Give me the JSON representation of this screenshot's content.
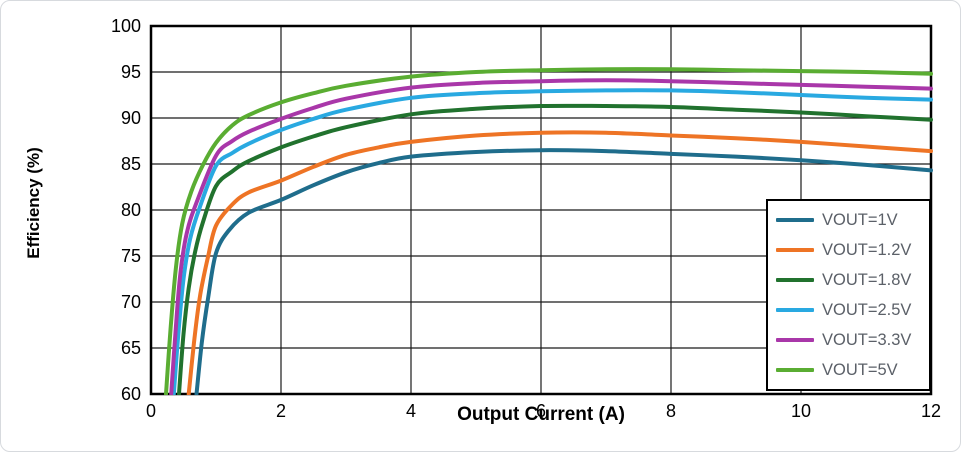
{
  "chart_data": {
    "type": "line",
    "title": "",
    "xlabel": "Output Current (A)",
    "ylabel": "Efficiency (%)",
    "xlim": [
      0,
      12
    ],
    "ylim": [
      60,
      100
    ],
    "xticks": [
      0,
      2,
      4,
      6,
      8,
      10,
      12
    ],
    "yticks": [
      100,
      95,
      90,
      85,
      80,
      75,
      70,
      65,
      60
    ],
    "grid": true,
    "legend_position": "lower right",
    "series": [
      {
        "name": "VOUT=1V",
        "color": "#1f6d8c",
        "points": [
          [
            0.7,
            60
          ],
          [
            0.78,
            65.5
          ],
          [
            0.88,
            70.5
          ],
          [
            1,
            75.3
          ],
          [
            1.2,
            77.8
          ],
          [
            1.5,
            79.7
          ],
          [
            2,
            81.1
          ],
          [
            2.5,
            82.7
          ],
          [
            3,
            84.1
          ],
          [
            3.5,
            85.1
          ],
          [
            4,
            85.8
          ],
          [
            5,
            86.3
          ],
          [
            6,
            86.5
          ],
          [
            7,
            86.4
          ],
          [
            8,
            86.1
          ],
          [
            9,
            85.8
          ],
          [
            10,
            85.4
          ],
          [
            11,
            84.9
          ],
          [
            12,
            84.3
          ]
        ]
      },
      {
        "name": "VOUT=1.2V",
        "color": "#ee7425",
        "points": [
          [
            0.58,
            60
          ],
          [
            0.66,
            65.5
          ],
          [
            0.75,
            70.5
          ],
          [
            0.88,
            75
          ],
          [
            1,
            78.3
          ],
          [
            1.25,
            80.6
          ],
          [
            1.5,
            81.9
          ],
          [
            2,
            83.2
          ],
          [
            2.5,
            84.7
          ],
          [
            3,
            86
          ],
          [
            3.5,
            86.8
          ],
          [
            4,
            87.4
          ],
          [
            5,
            88.1
          ],
          [
            6,
            88.4
          ],
          [
            7,
            88.4
          ],
          [
            8,
            88.1
          ],
          [
            9,
            87.8
          ],
          [
            10,
            87.4
          ],
          [
            11,
            86.9
          ],
          [
            12,
            86.4
          ]
        ]
      },
      {
        "name": "VOUT=1.8V",
        "color": "#21722e",
        "points": [
          [
            0.43,
            60
          ],
          [
            0.5,
            66.5
          ],
          [
            0.58,
            71.5
          ],
          [
            0.68,
            75.5
          ],
          [
            0.8,
            78.7
          ],
          [
            1,
            82.6
          ],
          [
            1.25,
            84.2
          ],
          [
            1.5,
            85.3
          ],
          [
            2,
            86.8
          ],
          [
            2.5,
            88
          ],
          [
            3,
            89
          ],
          [
            4,
            90.4
          ],
          [
            5,
            91
          ],
          [
            6,
            91.3
          ],
          [
            7,
            91.3
          ],
          [
            8,
            91.2
          ],
          [
            9,
            90.9
          ],
          [
            10,
            90.6
          ],
          [
            11,
            90.2
          ],
          [
            12,
            89.8
          ]
        ]
      },
      {
        "name": "VOUT=2.5V",
        "color": "#29a9e1",
        "points": [
          [
            0.35,
            60
          ],
          [
            0.42,
            66.5
          ],
          [
            0.5,
            72.5
          ],
          [
            0.6,
            76.8
          ],
          [
            0.75,
            80.3
          ],
          [
            1,
            84.8
          ],
          [
            1.25,
            86.2
          ],
          [
            1.5,
            87.2
          ],
          [
            2,
            88.7
          ],
          [
            2.5,
            89.9
          ],
          [
            3,
            90.9
          ],
          [
            4,
            92.2
          ],
          [
            5,
            92.7
          ],
          [
            6,
            92.9
          ],
          [
            7,
            93
          ],
          [
            8,
            93
          ],
          [
            9,
            92.8
          ],
          [
            10,
            92.5
          ],
          [
            11,
            92.2
          ],
          [
            12,
            92
          ]
        ]
      },
      {
        "name": "VOUT=3.3V",
        "color": "#a937a9",
        "points": [
          [
            0.31,
            60
          ],
          [
            0.38,
            67
          ],
          [
            0.45,
            73
          ],
          [
            0.55,
            77.5
          ],
          [
            0.7,
            80.8
          ],
          [
            1,
            85.9
          ],
          [
            1.25,
            87.5
          ],
          [
            1.5,
            88.5
          ],
          [
            2,
            89.9
          ],
          [
            2.5,
            91.1
          ],
          [
            3,
            92.1
          ],
          [
            4,
            93.3
          ],
          [
            5,
            93.8
          ],
          [
            6,
            94
          ],
          [
            7,
            94.1
          ],
          [
            8,
            94
          ],
          [
            9,
            93.8
          ],
          [
            10,
            93.6
          ],
          [
            11,
            93.4
          ],
          [
            12,
            93.2
          ]
        ]
      },
      {
        "name": "VOUT=5V",
        "color": "#5aad32",
        "points": [
          [
            0.23,
            60
          ],
          [
            0.3,
            67
          ],
          [
            0.38,
            73.5
          ],
          [
            0.48,
            78.5
          ],
          [
            0.62,
            82
          ],
          [
            0.8,
            84.9
          ],
          [
            1,
            87.3
          ],
          [
            1.25,
            89.2
          ],
          [
            1.5,
            90.3
          ],
          [
            2,
            91.7
          ],
          [
            2.5,
            92.7
          ],
          [
            3,
            93.5
          ],
          [
            4,
            94.5
          ],
          [
            5,
            95
          ],
          [
            6,
            95.2
          ],
          [
            7,
            95.3
          ],
          [
            8,
            95.3
          ],
          [
            9,
            95.2
          ],
          [
            10,
            95.1
          ],
          [
            11,
            95
          ],
          [
            12,
            94.8
          ]
        ]
      }
    ],
    "style": {
      "grid_color": "#1a1a1a",
      "axis_border_color": "#000000",
      "legend_text_color": "#5b6068",
      "line_width": 4
    }
  }
}
